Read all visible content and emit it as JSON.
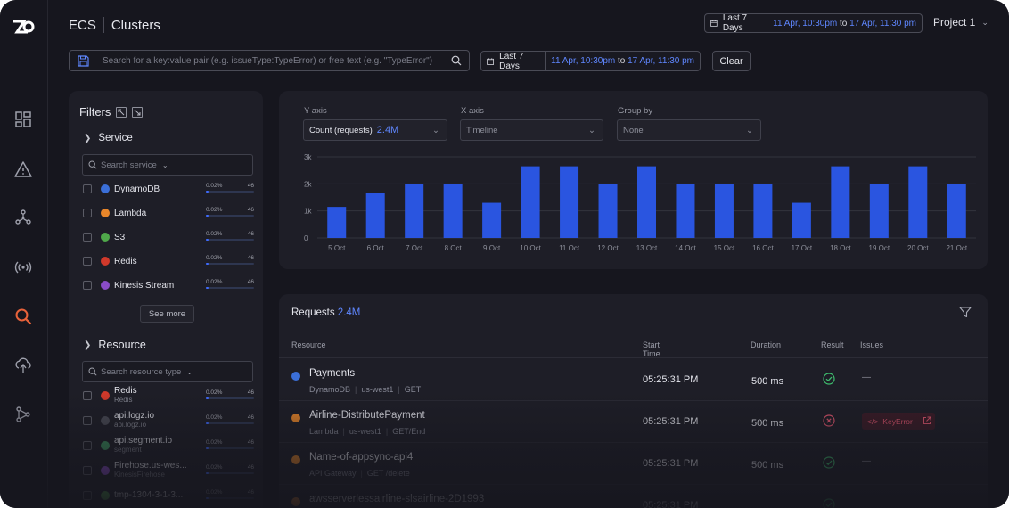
{
  "header": {
    "product": "ECS",
    "page": "Clusters",
    "date_preset": "Last 7 Days",
    "date_from": "11 Apr, 10:30pm",
    "date_to": "17 Apr, 11:30 pm",
    "date_joiner": "to",
    "project": "Project 1"
  },
  "toolbar": {
    "search_placeholder": "Search for a key:value pair (e.g. issueType:TypeError) or free text (e.g. \"TypeError\")",
    "date_preset": "Last 7 Days",
    "date_from": "11 Apr, 10:30pm",
    "date_to": "17 Apr, 11:30 pm",
    "date_joiner": "to",
    "clear_label": "Clear"
  },
  "rail": {
    "items": [
      "dashboard-icon",
      "alert-icon",
      "graph-icon",
      "broadcast-icon",
      "search-icon",
      "cloud-icon",
      "git-branch-icon"
    ],
    "active": "search-icon",
    "active_color": "#e8623a"
  },
  "filters": {
    "title": "Filters",
    "service": {
      "label": "Service",
      "search_placeholder": "Search service",
      "see_more": "See more",
      "items": [
        {
          "name": "DynamoDB",
          "pct": "0.02%",
          "count": "46",
          "fill": 0.06,
          "color": "#3b6fd8"
        },
        {
          "name": "Lambda",
          "pct": "0.02%",
          "count": "46",
          "fill": 0.06,
          "color": "#e8862a"
        },
        {
          "name": "S3",
          "pct": "0.02%",
          "count": "46",
          "fill": 0.06,
          "color": "#4fa84a"
        },
        {
          "name": "Redis",
          "pct": "0.02%",
          "count": "46",
          "fill": 0.06,
          "color": "#d0392b"
        },
        {
          "name": "Kinesis Stream",
          "pct": "0.02%",
          "count": "46",
          "fill": 0.06,
          "color": "#8a4cc9"
        }
      ]
    },
    "resource": {
      "label": "Resource",
      "search_placeholder": "Search resource type",
      "items": [
        {
          "name": "Redis",
          "sub": "Redis",
          "pct": "0.02%",
          "count": "46",
          "fill": 0.06,
          "color": "#d0392b"
        },
        {
          "name": "api.logz.io",
          "sub": "api.logz.io",
          "pct": "0.02%",
          "count": "46",
          "fill": 0.06,
          "color": "#4a4b55"
        },
        {
          "name": "api.segment.io",
          "sub": "segment",
          "pct": "0.02%",
          "count": "46",
          "fill": 0.06,
          "color": "#3f9a63"
        },
        {
          "name": "Firehose.us-wes...",
          "sub": "KinesisFirehose",
          "pct": "0.02%",
          "count": "46",
          "fill": 0.06,
          "color": "#8a4cc9"
        },
        {
          "name": "tmp-1304-3-1-3...",
          "sub": "",
          "pct": "0.02%",
          "count": "46",
          "fill": 0.06,
          "color": "#4fa84a"
        }
      ]
    }
  },
  "chart_controls": {
    "y_label": "Y axis",
    "y_value": "Count (requests)",
    "y_total": "2.4M",
    "x_label": "X axis",
    "x_value": "Timeline",
    "group_label": "Group by",
    "group_value": "None"
  },
  "chart_data": {
    "type": "bar",
    "categories": [
      "5 Oct",
      "6 Oct",
      "7 Oct",
      "8 Oct",
      "9 Oct",
      "10 Oct",
      "11 Oct",
      "12 Oct",
      "13 Oct",
      "14 Oct",
      "15 Oct",
      "16 Oct",
      "17 Oct",
      "18 Oct",
      "19 Oct",
      "20 Oct",
      "21 Oct"
    ],
    "values": [
      1150,
      1650,
      1980,
      1980,
      1300,
      2650,
      2650,
      1980,
      2650,
      1980,
      1980,
      1980,
      1300,
      2650,
      1980,
      2650,
      1980
    ],
    "yticks": [
      "0",
      "1k",
      "2k",
      "3k"
    ],
    "ylim": [
      0,
      3000
    ],
    "grid": true,
    "bar_color": "#2a55e0"
  },
  "requests": {
    "title": "Requests",
    "total": "2.4M",
    "columns": {
      "resource": "Resource",
      "start_time": "Start Time",
      "duration": "Duration",
      "result": "Result",
      "issues": "Issues"
    },
    "rows": [
      {
        "name": "Payments",
        "svc": "DynamoDB",
        "region": "us-west1",
        "method": "GET",
        "start": "05:25:31 PM",
        "duration": "500 ms",
        "result": "ok",
        "issue": "—",
        "color": "#3b6fd8"
      },
      {
        "name": "Airline-DistributePayment",
        "svc": "Lambda",
        "region": "us-west1",
        "method": "GET/End",
        "start": "05:25:31 PM",
        "duration": "500 ms",
        "result": "error",
        "issue": "KeyError",
        "color": "#e8862a"
      },
      {
        "name": "Name-of-appsync-api4",
        "svc": "API Gateway",
        "region": "",
        "method": "GET /delete",
        "start": "05:25:31 PM",
        "duration": "500 ms",
        "result": "ok",
        "issue": "—",
        "color": "#e8862a"
      },
      {
        "name": "awsserverlessairline-slsairline-2D1993",
        "svc": "",
        "region": "",
        "method": "",
        "start": "05:25:31 PM",
        "duration": "",
        "result": "ok",
        "issue": "",
        "color": "#e8862a"
      }
    ]
  },
  "colors": {
    "accent": "#5f87ff",
    "ok": "#3fbf6f",
    "error": "#e0566e"
  }
}
